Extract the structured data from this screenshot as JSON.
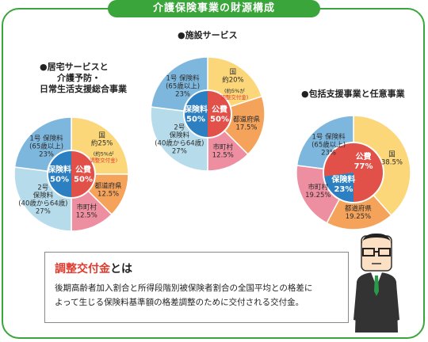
{
  "header": {
    "title": "介護保険事業の財源構成"
  },
  "colors": {
    "frame_green": "#3aa53a",
    "national": "#fbd77a",
    "prefecture": "#f5a35b",
    "municipality": "#ee8fa1",
    "no1_insured": "#7eb7dd",
    "no2_insured": "#b6dcec",
    "insurance_center": "#2c7fc0",
    "public_center": "#e2504a",
    "accent_red": "#e03b2e"
  },
  "note": {
    "term": "調整交付金",
    "term_suffix": "とは",
    "body_line1": "後期高齢者加入割合と所得段階別被保険者割合の全国平均との格差に",
    "body_line2": "よって生じる保険料基準額の格差調整のために交付される交付金。"
  },
  "chart_data": [
    {
      "type": "pie",
      "title": "●居宅サービスと介護予防・日常生活支援総合事業",
      "title_lines": [
        "●居宅サービスと",
        "介護予防・",
        "日常生活支援総合事業"
      ],
      "slices": [
        {
          "label_lines": [
            "国",
            "約25%"
          ],
          "sub_lines": [
            "(約5%が",
            "調整交付金)"
          ],
          "value": 25,
          "color": "#fbd77a"
        },
        {
          "label_lines": [
            "都道府県",
            "12.5%"
          ],
          "value": 12.5,
          "color": "#f5a35b"
        },
        {
          "label_lines": [
            "市町村",
            "12.5%"
          ],
          "value": 12.5,
          "color": "#ee8fa1"
        },
        {
          "label_lines": [
            "2号",
            "保険料",
            "(40歳から64歳)",
            "27%"
          ],
          "value": 27,
          "color": "#b6dcec"
        },
        {
          "label_lines": [
            "1号 保険料",
            "(65歳以上)",
            "23%"
          ],
          "value": 23,
          "color": "#7eb7dd"
        }
      ],
      "inner": [
        {
          "label_lines": [
            "保険料",
            "50%"
          ],
          "value": 50,
          "color": "#2c7fc0"
        },
        {
          "label_lines": [
            "公費",
            "50%"
          ],
          "value": 50,
          "color": "#e2504a"
        }
      ]
    },
    {
      "type": "pie",
      "title": "●施設サービス",
      "title_lines": [
        "●施設サービス"
      ],
      "slices": [
        {
          "label_lines": [
            "国",
            "約20%"
          ],
          "sub_lines": [
            "(約5%が",
            "調整交付金)"
          ],
          "value": 20,
          "color": "#fbd77a"
        },
        {
          "label_lines": [
            "都道府県",
            "17.5%"
          ],
          "value": 17.5,
          "color": "#f5a35b"
        },
        {
          "label_lines": [
            "市町村",
            "12.5%"
          ],
          "value": 12.5,
          "color": "#ee8fa1"
        },
        {
          "label_lines": [
            "2号",
            "保険料",
            "(40歳から64歳)",
            "27%"
          ],
          "value": 27,
          "color": "#b6dcec"
        },
        {
          "label_lines": [
            "1号 保険料",
            "(65歳以上)",
            "23%"
          ],
          "value": 23,
          "color": "#7eb7dd"
        }
      ],
      "inner": [
        {
          "label_lines": [
            "保険料",
            "50%"
          ],
          "value": 50,
          "color": "#2c7fc0"
        },
        {
          "label_lines": [
            "公費",
            "50%"
          ],
          "value": 50,
          "color": "#e2504a"
        }
      ]
    },
    {
      "type": "pie",
      "title": "●包括支援事業と任意事業",
      "title_lines": [
        "●包括支援事業と任意事業"
      ],
      "slices": [
        {
          "label_lines": [
            "国",
            "38.5%"
          ],
          "value": 38.5,
          "color": "#fbd77a"
        },
        {
          "label_lines": [
            "都道府県",
            "19.25%"
          ],
          "value": 19.25,
          "color": "#f5a35b"
        },
        {
          "label_lines": [
            "市町村",
            "19.25%"
          ],
          "value": 19.25,
          "color": "#ee8fa1"
        },
        {
          "label_lines": [
            "1号 保険料",
            "(65歳以上)",
            "23%"
          ],
          "value": 23,
          "color": "#7eb7dd"
        }
      ],
      "inner": [
        {
          "label_lines": [
            "保険料",
            "23%"
          ],
          "value": 23,
          "color": "#2c7fc0"
        },
        {
          "label_lines": [
            "公費",
            "77%"
          ],
          "value": 77,
          "color": "#e2504a"
        }
      ]
    }
  ]
}
